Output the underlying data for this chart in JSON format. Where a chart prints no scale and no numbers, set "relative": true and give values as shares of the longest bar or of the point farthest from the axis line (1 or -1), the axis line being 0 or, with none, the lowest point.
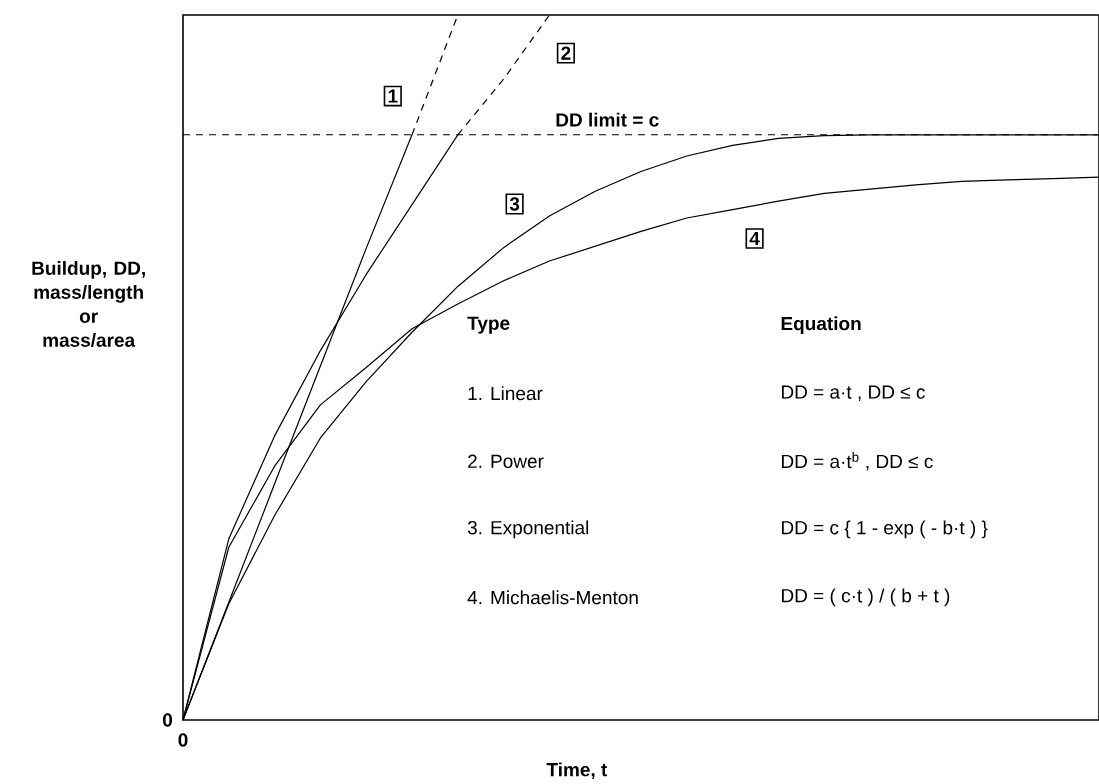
{
  "chart_data": {
    "type": "line",
    "relative": true,
    "xlabel": "Time, t",
    "ylabel": "Buildup, DD, mass/length or mass/area",
    "categories": [
      null,
      null,
      null,
      null,
      null,
      null,
      null,
      null,
      null,
      null,
      null,
      null,
      null,
      null,
      null,
      null,
      null,
      null,
      null,
      null,
      null
    ],
    "series": [
      {
        "color": "#000000",
        "line_style": "solid",
        "values": [
          0,
          0.167,
          0.335,
          0.502,
          0.669,
          0.83,
          null,
          null,
          null,
          null,
          null,
          null,
          null,
          null,
          null,
          null,
          null,
          null,
          null,
          null,
          null
        ]
      },
      {
        "color": "#000000",
        "line_style": "dashed",
        "values": [
          null,
          null,
          null,
          null,
          null,
          0.83,
          1,
          null,
          null,
          null,
          null,
          null,
          null,
          null,
          null,
          null,
          null,
          null,
          null,
          null,
          null
        ]
      },
      {
        "color": "#000000",
        "line_style": "solid",
        "values": [
          0,
          0.257,
          0.403,
          0.524,
          0.632,
          0.731,
          0.83,
          null,
          null,
          null,
          null,
          null,
          null,
          null,
          null,
          null,
          null,
          null,
          null,
          null,
          null
        ]
      },
      {
        "color": "#000000",
        "line_style": "dashed",
        "values": [
          null,
          null,
          null,
          null,
          null,
          null,
          0.83,
          0.909,
          1,
          null,
          null,
          null,
          null,
          null,
          null,
          null,
          null,
          null,
          null,
          null,
          null
        ]
      },
      {
        "color": "#000000",
        "line_style": "solid",
        "values": [
          0,
          0.165,
          0.29,
          0.4,
          0.48,
          0.55,
          0.615,
          0.67,
          0.715,
          0.75,
          0.778,
          0.8,
          0.815,
          0.825,
          0.829,
          0.83,
          0.83,
          0.83,
          0.83,
          0.83,
          0.83
        ]
      },
      {
        "color": "#000000",
        "line_style": "solid",
        "values": [
          0,
          0.245,
          0.36,
          0.447,
          0.5,
          0.555,
          0.59,
          0.623,
          0.651,
          0.672,
          0.693,
          0.712,
          0.724,
          0.736,
          0.747,
          0.753,
          0.759,
          0.764,
          0.766,
          0.768,
          0.77
        ]
      }
    ],
    "ref_lines": [
      {
        "axis": "y",
        "value": 0.83,
        "label": "DD limit = c",
        "line_style": "dashed",
        "color": "#000000"
      }
    ],
    "annotations": [
      "1",
      "2",
      "3",
      "4",
      "0",
      "0",
      "Type",
      "Equation",
      "1. Linear",
      "DD = a·t , DD ≤ c",
      "2. Power",
      "DD = a·t$^{b}$ , DD ≤ c",
      "3. Exponential",
      "DD = c { 1 - exp ( - b·t ) }",
      "4. Michaelis-Menton",
      "DD = ( c·t ) / ( b + t )"
    ]
  }
}
